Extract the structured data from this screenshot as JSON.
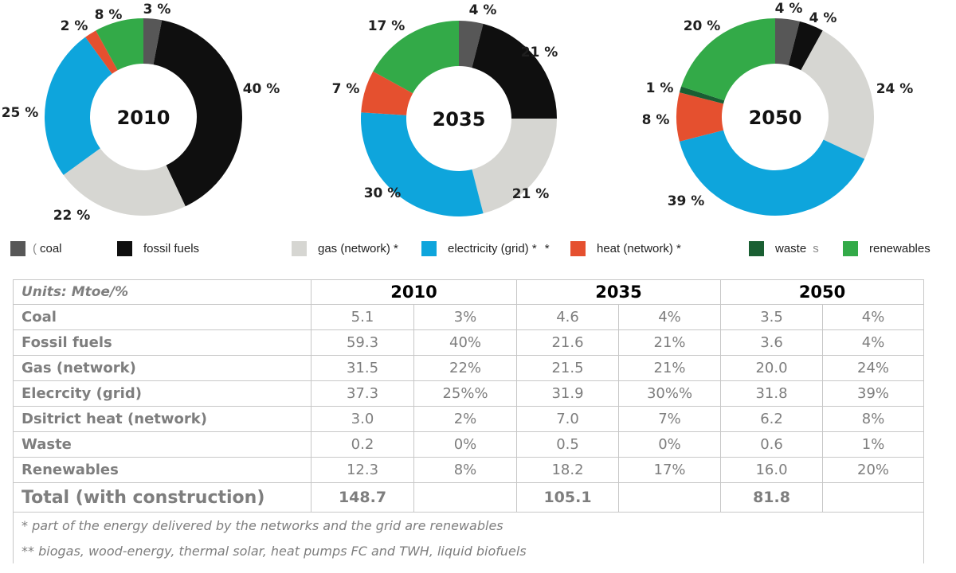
{
  "chart_data": {
    "type": "pie",
    "variant": "donut",
    "charts": [
      {
        "year": "2010",
        "slices": [
          {
            "key": "coal",
            "value": 3,
            "label": "3 %"
          },
          {
            "key": "fossil",
            "value": 40,
            "label": "40 %"
          },
          {
            "key": "gas",
            "value": 22,
            "label": "22 %"
          },
          {
            "key": "elec",
            "value": 25,
            "label": "25 %"
          },
          {
            "key": "heat",
            "value": 2,
            "label": "2 %"
          },
          {
            "key": "waste",
            "value": 0,
            "label": ""
          },
          {
            "key": "renew",
            "value": 8,
            "label": "8 %"
          }
        ]
      },
      {
        "year": "2035",
        "slices": [
          {
            "key": "coal",
            "value": 4,
            "label": "4 %"
          },
          {
            "key": "fossil",
            "value": 21,
            "label": "21 %"
          },
          {
            "key": "gas",
            "value": 21,
            "label": "21 %"
          },
          {
            "key": "elec",
            "value": 30,
            "label": "30 %"
          },
          {
            "key": "heat",
            "value": 7,
            "label": "7 %"
          },
          {
            "key": "waste",
            "value": 0,
            "label": ""
          },
          {
            "key": "renew",
            "value": 17,
            "label": "17 %"
          }
        ]
      },
      {
        "year": "2050",
        "slices": [
          {
            "key": "coal",
            "value": 4,
            "label": "4 %"
          },
          {
            "key": "fossil",
            "value": 4,
            "label": "4 %"
          },
          {
            "key": "gas",
            "value": 24,
            "label": "24 %"
          },
          {
            "key": "elec",
            "value": 39,
            "label": "39 %"
          },
          {
            "key": "heat",
            "value": 8,
            "label": "8 %"
          },
          {
            "key": "waste",
            "value": 1,
            "label": "1 %"
          },
          {
            "key": "renew",
            "value": 20,
            "label": "20 %"
          }
        ]
      }
    ],
    "colors": {
      "coal": "#575757",
      "fossil": "#0f0f0f",
      "gas": "#d6d6d2",
      "elec": "#0ea5dc",
      "heat": "#e5502f",
      "waste": "#1a5f33",
      "renew": "#33aa48"
    }
  },
  "legend": [
    {
      "key": "coal",
      "label": "coal",
      "prefix_char": "("
    },
    {
      "key": "fossil",
      "label": "fossil fuels"
    },
    {
      "key": "gas",
      "label": "gas (network) *"
    },
    {
      "key": "elec",
      "label": "electricity (grid) *",
      "suffix": "*"
    },
    {
      "key": "heat",
      "label": "heat (network) *"
    },
    {
      "key": "waste",
      "label": "waste",
      "suffix": "s"
    },
    {
      "key": "renew",
      "label": "renewables"
    }
  ],
  "table": {
    "units": "Units: Mtoe/%",
    "years": [
      "2010",
      "2035",
      "2050"
    ],
    "rows": [
      {
        "label": "Coal",
        "cells": [
          "5.1",
          "3%",
          "4.6",
          "4%",
          "3.5",
          "4%"
        ]
      },
      {
        "label": "Fossil fuels",
        "cells": [
          "59.3",
          "40%",
          "21.6",
          "21%",
          "3.6",
          "4%"
        ]
      },
      {
        "label": "Gas (network)",
        "cells": [
          "31.5",
          "22%",
          "21.5",
          "21%",
          "20.0",
          "24%"
        ]
      },
      {
        "label": "Elecrcity (grid)",
        "cells": [
          "37.3",
          "25%%",
          "31.9",
          "30%%",
          "31.8",
          "39%"
        ]
      },
      {
        "label": "Dsitrict heat (network)",
        "cells": [
          "3.0",
          "2%",
          "7.0",
          "7%",
          "6.2",
          "8%"
        ]
      },
      {
        "label": "Waste",
        "cells": [
          "0.2",
          "0%",
          "0.5",
          "0%",
          "0.6",
          "1%"
        ]
      },
      {
        "label": "Renewables",
        "cells": [
          "12.3",
          "8%",
          "18.2",
          "17%",
          "16.0",
          "20%"
        ]
      }
    ],
    "total": {
      "label": "Total (with construction)",
      "cells": [
        "148.7",
        "",
        "105.1",
        "",
        "81.8",
        ""
      ]
    },
    "notes": [
      "* part of the energy delivered by the networks and the grid are renewables",
      "** biogas, wood-energy, thermal solar, heat pumps FC and TWH, liquid biofuels"
    ]
  }
}
